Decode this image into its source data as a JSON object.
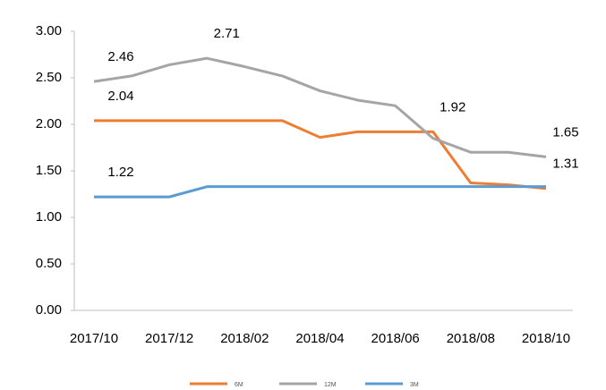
{
  "chart_data": {
    "type": "line",
    "categories": [
      "2017/10",
      null,
      "2017/12",
      null,
      "2018/02",
      null,
      "2018/04",
      null,
      "2018/06",
      null,
      "2018/08",
      null,
      "2018/10"
    ],
    "series": [
      {
        "name": "6M",
        "color": "#ed7d31",
        "values": [
          2.04,
          2.04,
          2.04,
          2.04,
          2.04,
          2.04,
          1.86,
          1.92,
          1.92,
          1.92,
          1.37,
          1.35,
          1.31
        ],
        "value_labels": [
          "2.04",
          null,
          null,
          null,
          null,
          null,
          null,
          null,
          null,
          "1.92",
          null,
          null,
          "1.31"
        ]
      },
      {
        "name": "12M",
        "color": "#a5a5a5",
        "values": [
          2.46,
          2.52,
          2.64,
          2.71,
          2.62,
          2.52,
          2.36,
          2.26,
          2.2,
          1.85,
          1.7,
          1.7,
          1.65
        ],
        "value_labels": [
          "2.46",
          null,
          null,
          "2.71",
          null,
          null,
          null,
          null,
          null,
          null,
          null,
          null,
          "1.65"
        ]
      },
      {
        "name": "3M",
        "color": "#5b9bd5",
        "values": [
          1.22,
          1.22,
          1.22,
          1.33,
          1.33,
          1.33,
          1.33,
          1.33,
          1.33,
          1.33,
          1.33,
          1.33,
          1.33
        ],
        "value_labels": [
          "1.22",
          null,
          null,
          null,
          null,
          null,
          null,
          null,
          null,
          null,
          null,
          null,
          null
        ]
      }
    ],
    "ylim": [
      0,
      3
    ],
    "yticks": [
      {
        "value": 0,
        "label": "0.00"
      },
      {
        "value": 0.5,
        "label": "0.50"
      },
      {
        "value": 1,
        "label": "1.00"
      },
      {
        "value": 1.5,
        "label": "1.50"
      },
      {
        "value": 2,
        "label": "2.00"
      },
      {
        "value": 2.5,
        "label": "2.50"
      },
      {
        "value": 3,
        "label": "3.00"
      }
    ],
    "grid": false,
    "legend": "bottom"
  }
}
